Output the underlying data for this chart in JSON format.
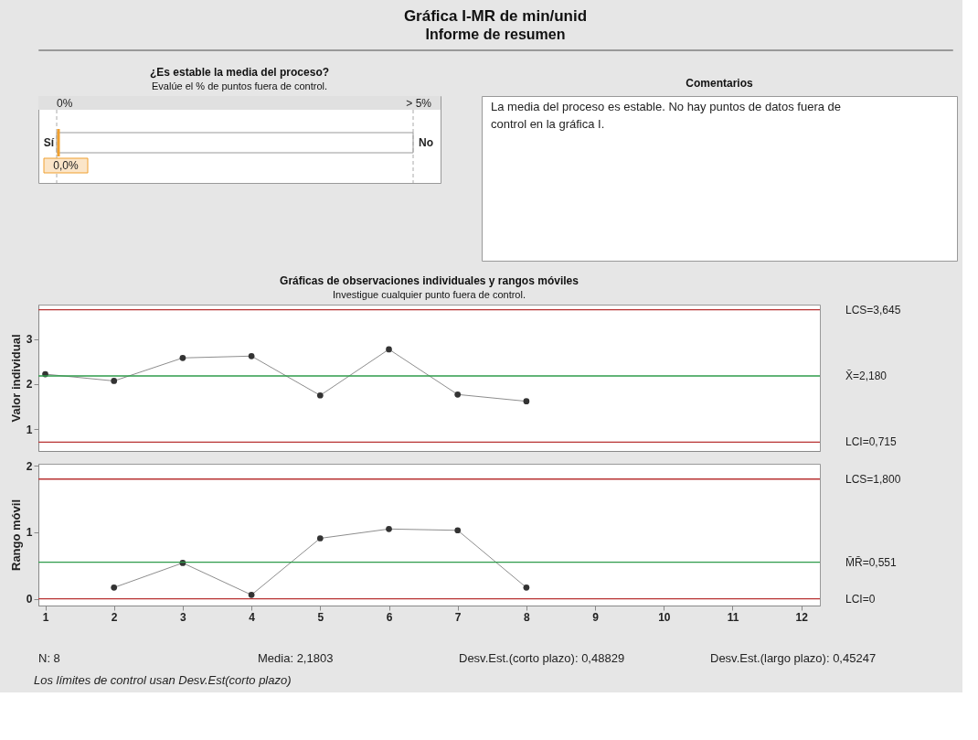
{
  "chart_data": [
    {
      "type": "other",
      "title": "Gráfica I-MR de min/unid",
      "subtitle": "Informe de resumen"
    },
    {
      "type": "other",
      "title": "¿Es estable la media del proceso?",
      "subtitle": "Evalúe el % de puntos fuera de control.",
      "annotations": [
        "0%",
        "> 5%",
        "Sí",
        "No",
        "0,0%"
      ]
    },
    {
      "type": "other",
      "title": "Comentarios",
      "annotations": [
        "La media del proceso es estable. No hay puntos de datos fuera de control en la gráfica I."
      ]
    },
    {
      "type": "line",
      "title": "Gráficas de observaciones individuales y rangos móviles",
      "subtitle": "Investigue cualquier punto fuera de control.",
      "ylabel": "Valor individual",
      "x": [
        1,
        2,
        3,
        4,
        5,
        6,
        7,
        8
      ],
      "series": [
        {
          "color": "#333333",
          "values": [
            2.22,
            2.07,
            2.58,
            2.62,
            1.75,
            2.77,
            1.77,
            1.62
          ]
        }
      ],
      "xlim": [
        0.9,
        12.27
      ],
      "xticks": [
        1,
        2,
        3,
        4,
        5,
        6,
        7,
        8,
        9,
        10,
        11,
        12
      ],
      "ylim": [
        0.52,
        3.76
      ],
      "yticks": [
        1,
        2,
        3
      ],
      "tick_labels": "y",
      "marker": "circle",
      "grid": false,
      "ref_lines": [
        {
          "axis": "y",
          "value": 3.645,
          "label": "LCS=3,645",
          "color": "#b83232"
        },
        {
          "axis": "y",
          "value": 2.18,
          "label": "X̄=2,180",
          "color": "#2e9b4a"
        },
        {
          "axis": "y",
          "value": 0.715,
          "label": "LCI=0,715",
          "color": "#b83232"
        }
      ]
    },
    {
      "type": "line",
      "ylabel": "Rango móvil",
      "x": [
        2,
        3,
        4,
        5,
        6,
        7,
        8
      ],
      "series": [
        {
          "color": "#333333",
          "values": [
            0.17,
            0.54,
            0.06,
            0.91,
            1.05,
            1.03,
            0.17
          ]
        }
      ],
      "xlim": [
        0.9,
        12.27
      ],
      "xticks": [
        1,
        2,
        3,
        4,
        5,
        6,
        7,
        8,
        9,
        10,
        11,
        12
      ],
      "ylim": [
        -0.1,
        2.03
      ],
      "yticks": [
        0,
        1,
        2
      ],
      "marker": "circle",
      "grid": false,
      "ref_lines": [
        {
          "axis": "y",
          "value": 1.8,
          "label": "LCS=1,800",
          "color": "#b83232"
        },
        {
          "axis": "y",
          "value": 0.551,
          "label": "M̄R̄=0,551",
          "color": "#2e9b4a"
        },
        {
          "axis": "y",
          "value": 0,
          "label": "LCI=0",
          "color": "#b83232"
        }
      ],
      "annotations": [
        "N: 8",
        "Media: 2,1803",
        "Desv.Est.(corto plazo): 0,48829",
        "Desv.Est.(largo plazo): 0,45247",
        "Los límites de control usan Desv.Est(corto plazo)"
      ]
    }
  ]
}
